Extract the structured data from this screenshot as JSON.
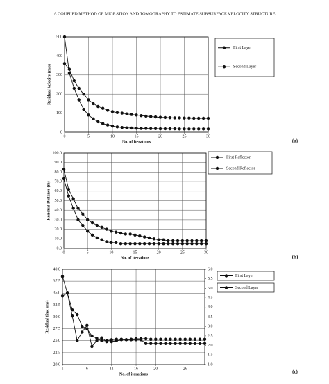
{
  "page_header": "A COUPLED METHOD OF MIGRATION AND TOMOGRAPHY TO ESTIMATE SUBSURFACE VELOCITY STRUCTURE",
  "chart_data": [
    {
      "type": "line",
      "panel_label": "(a)",
      "x_label": "No. of iterations",
      "y_label": "Residual Velocity (m/s)",
      "x": [
        0,
        1,
        2,
        3,
        4,
        5,
        6,
        7,
        8,
        9,
        10,
        11,
        12,
        13,
        14,
        15,
        16,
        17,
        18,
        19,
        20,
        21,
        22,
        23,
        24,
        25,
        26,
        27,
        28,
        29,
        30
      ],
      "xlim": [
        0,
        30
      ],
      "xticks": [
        0,
        5,
        10,
        15,
        20,
        25,
        30
      ],
      "ylim": [
        0,
        500
      ],
      "yticks": [
        0,
        100,
        200,
        300,
        400,
        500
      ],
      "grid": true,
      "series": [
        {
          "name": "First Layer",
          "color": "#111111",
          "values": [
            500,
            310,
            230,
            170,
            120,
            90,
            70,
            55,
            45,
            38,
            32,
            28,
            25,
            23,
            22,
            21,
            20,
            20,
            19,
            19,
            18,
            18,
            18,
            18,
            17,
            17,
            17,
            17,
            17,
            17,
            17
          ]
        },
        {
          "name": "Second Layer",
          "color": "#111111",
          "values": [
            360,
            330,
            270,
            230,
            200,
            170,
            150,
            135,
            125,
            115,
            108,
            103,
            100,
            96,
            93,
            90,
            87,
            84,
            82,
            80,
            78,
            77,
            76,
            75,
            75,
            74,
            74,
            73,
            73,
            73,
            73
          ]
        }
      ]
    },
    {
      "type": "line",
      "panel_label": "(b)",
      "x_label": "No. of iterations",
      "y_label": "Residual Distance (m)",
      "x": [
        0,
        1,
        2,
        3,
        4,
        5,
        6,
        7,
        8,
        9,
        10,
        11,
        12,
        13,
        14,
        15,
        16,
        17,
        18,
        19,
        20,
        21,
        22,
        23,
        24,
        25,
        26,
        27,
        28,
        29,
        30
      ],
      "xlim": [
        0,
        30
      ],
      "xticks": [
        0,
        5,
        10,
        15,
        20,
        25,
        30
      ],
      "ylim": [
        0,
        100
      ],
      "yticks": [
        {
          "value": 0,
          "label": "0.0"
        },
        {
          "value": 10,
          "label": "10.0"
        },
        {
          "value": 20,
          "label": "20.0"
        },
        {
          "value": 30,
          "label": "30.0"
        },
        {
          "value": 40,
          "label": "40.0"
        },
        {
          "value": 50,
          "label": "50.0"
        },
        {
          "value": 60,
          "label": "60.0"
        },
        {
          "value": 70,
          "label": "70.0"
        },
        {
          "value": 80,
          "label": "80.0"
        },
        {
          "value": 90,
          "label": "90.0"
        },
        {
          "value": 100,
          "label": "100.0"
        }
      ],
      "grid": true,
      "series": [
        {
          "name": "First Reflector",
          "color": "#111111",
          "values": [
            83,
            62,
            52,
            42,
            36,
            30,
            27,
            24,
            22,
            20,
            18,
            17,
            16,
            15,
            15,
            14,
            13,
            12,
            11,
            10,
            9,
            9,
            8,
            8,
            8,
            8,
            8,
            8,
            8,
            8,
            8
          ]
        },
        {
          "name": "Second Reflector",
          "color": "#111111",
          "values": [
            73,
            55,
            42,
            30,
            24,
            18,
            14,
            11,
            9,
            7,
            6,
            6,
            5,
            5,
            5,
            5,
            5,
            5,
            5,
            5,
            5,
            5,
            5,
            5,
            5,
            5,
            5,
            5,
            5,
            5,
            5
          ]
        }
      ]
    },
    {
      "type": "line",
      "panel_label": "(c)",
      "x_label": "No. of iterations",
      "y_label": "Residual time (ms)",
      "x": [
        1,
        2,
        3,
        4,
        5,
        6,
        7,
        8,
        9,
        10,
        11,
        12,
        13,
        14,
        15,
        16,
        17,
        18,
        19,
        20,
        21,
        22,
        23,
        24,
        25,
        26,
        27,
        28,
        29,
        30
      ],
      "xlim": [
        1,
        30
      ],
      "xticks": [
        1,
        6,
        11,
        16,
        20,
        26
      ],
      "ylim": [
        20,
        40
      ],
      "yticks": [
        {
          "value": 20,
          "label": "20.0"
        },
        22.5,
        {
          "value": 25,
          "label": "25.0"
        },
        27.5,
        {
          "value": 30,
          "label": "30.0"
        },
        32.5,
        {
          "value": 35,
          "label": "35.0"
        },
        37.5,
        {
          "value": 40,
          "label": "40.0"
        }
      ],
      "y2lim": [
        1,
        6
      ],
      "y2ticks": [
        {
          "value": 1,
          "label": "1.0"
        },
        1.5,
        {
          "value": 2,
          "label": "2.0"
        },
        2.5,
        {
          "value": 3,
          "label": "3.0"
        },
        3.5,
        {
          "value": 4,
          "label": "4.0"
        },
        4.5,
        {
          "value": 5,
          "label": "5.0"
        },
        5.5,
        {
          "value": 6,
          "label": "6.0"
        }
      ],
      "grid": true,
      "series": [
        {
          "name": "First Layer",
          "color": "#111111",
          "values": [
            38.5,
            35,
            31.5,
            30.5,
            28,
            27.5,
            26,
            25.5,
            25,
            25,
            25.2,
            25.3,
            25.3,
            25.2,
            25.3,
            25.4,
            25.4,
            25.4,
            25.3,
            25.3,
            25.3,
            25.3,
            25.3,
            25.3,
            25.3,
            25.3,
            25.3,
            25.3,
            25.3,
            25.3
          ]
        },
        {
          "name": "Second Layer",
          "color": "#111111",
          "axis": "y2",
          "values": [
            4.6,
            4.75,
            3.55,
            2.25,
            2.7,
            3.05,
            1.95,
            2.25,
            2.4,
            2.2,
            2.2,
            2.25,
            2.3,
            2.3,
            2.3,
            2.3,
            2.3,
            2.1,
            2.1,
            2.1,
            2.1,
            2.1,
            2.1,
            2.1,
            2.1,
            2.1,
            2.1,
            2.1,
            2.1,
            2.1
          ]
        }
      ]
    }
  ]
}
